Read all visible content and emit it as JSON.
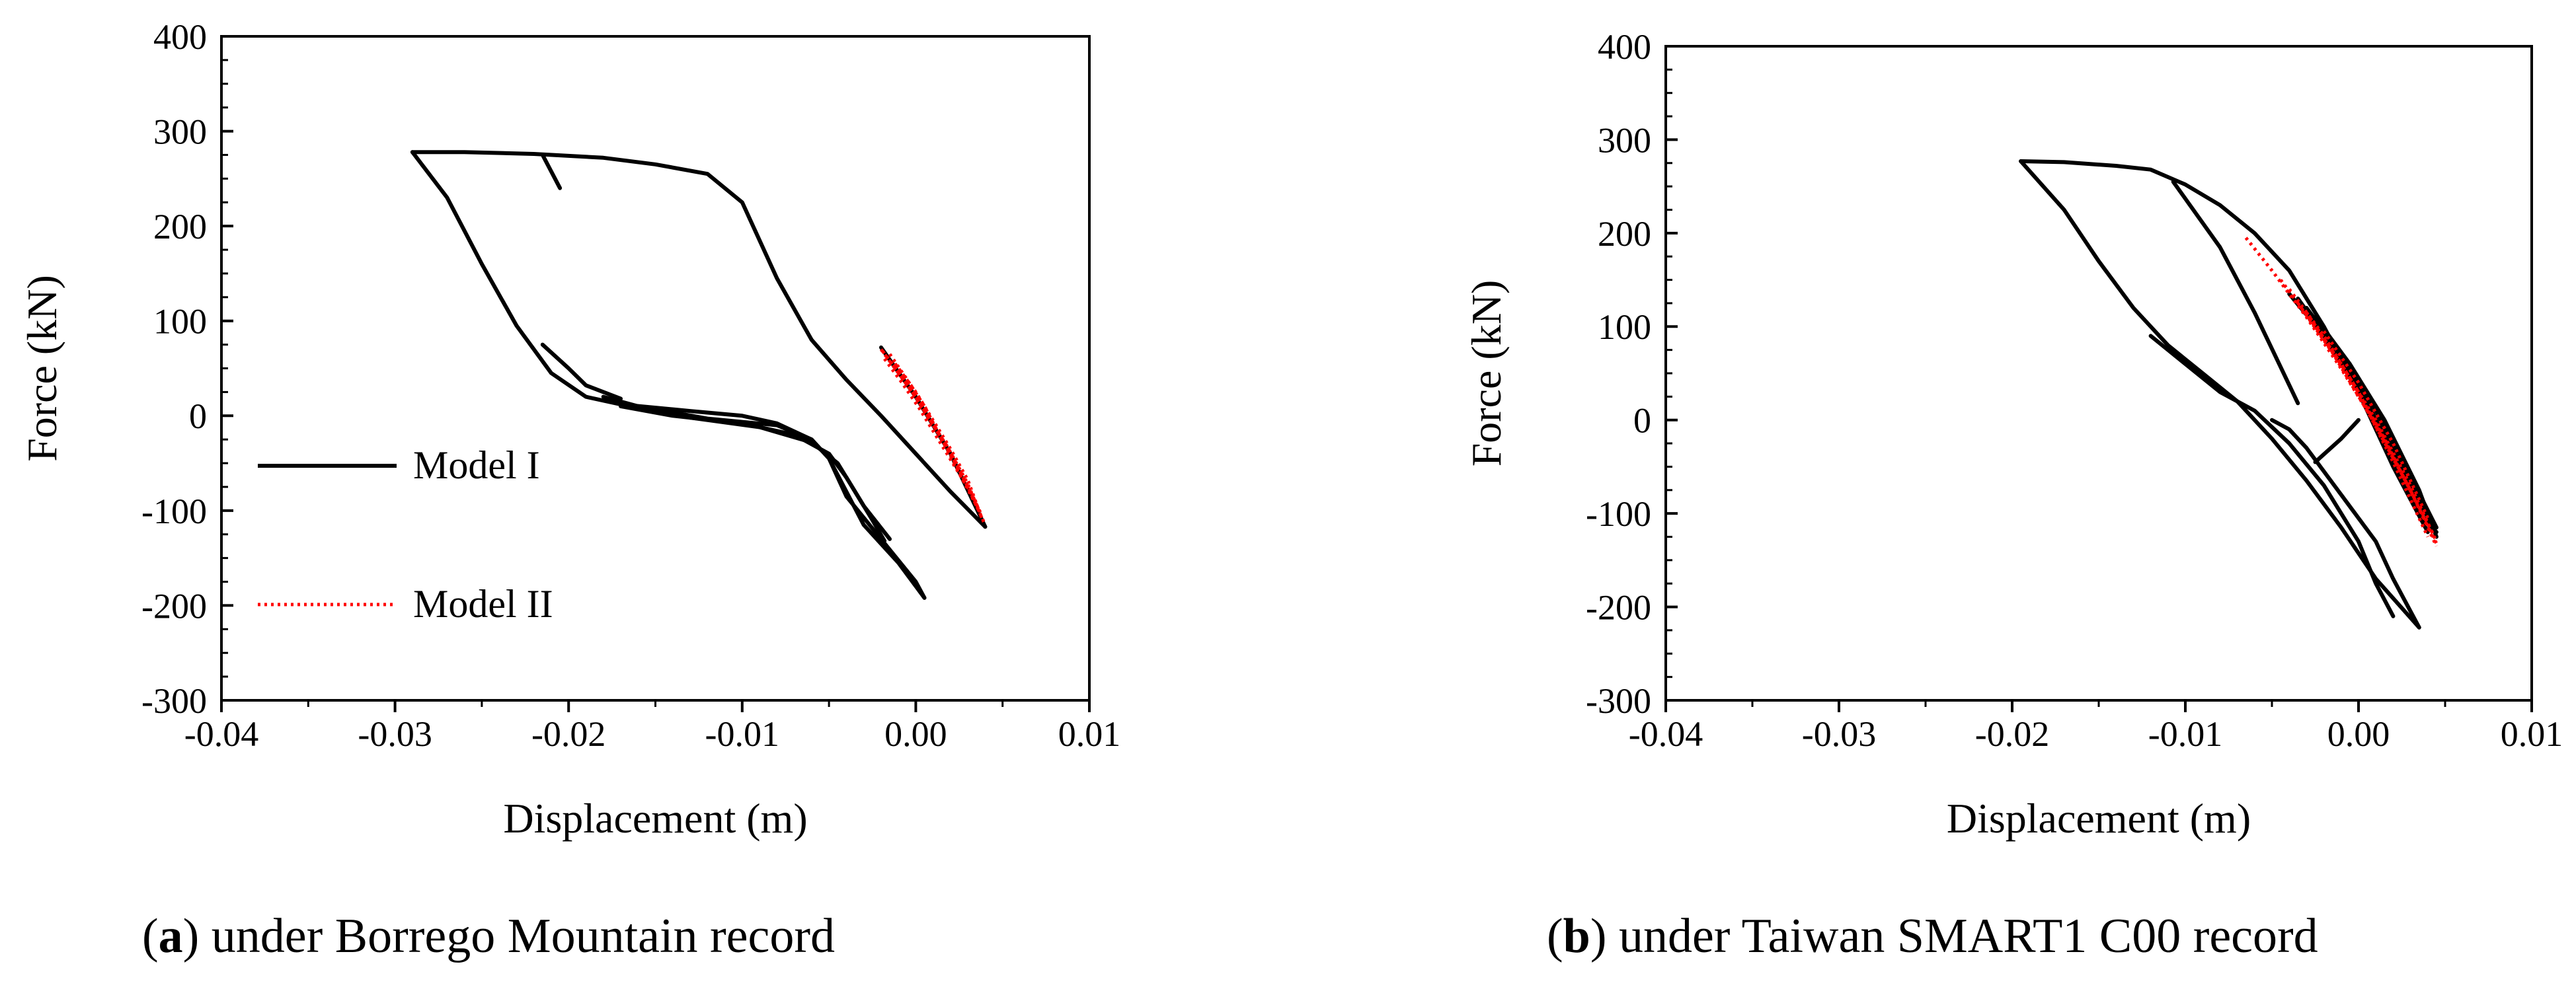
{
  "figure": {
    "captions": [
      {
        "letter": "a",
        "text": ") under Borrego Mountain record",
        "open": "("
      },
      {
        "letter": "b",
        "text": ") under Taiwan SMART1 C00 record",
        "open": "("
      }
    ]
  },
  "chart_data": [
    {
      "type": "line",
      "title": "",
      "xlabel": "Displacement (m)",
      "ylabel": "Force (kN)",
      "xlim": [
        -0.04,
        0.01
      ],
      "ylim": [
        -300,
        400
      ],
      "xticks": [
        -0.04,
        -0.03,
        -0.02,
        -0.01,
        0.0,
        0.01
      ],
      "xtick_labels": [
        "-0.04",
        "-0.03",
        "-0.02",
        "-0.01",
        "0.00",
        "0.01"
      ],
      "yticks": [
        -300,
        -200,
        -100,
        0,
        100,
        200,
        300,
        400
      ],
      "ytick_labels": [
        "-300",
        "-200",
        "-100",
        "0",
        "100",
        "200",
        "300",
        "400"
      ],
      "grid": false,
      "legend": "center-left",
      "series": [
        {
          "name": "Model I",
          "color": "#000000",
          "style": "solid",
          "paths": [
            [
              [
                0.004,
                -117
              ],
              [
                0.002,
                -80
              ],
              [
                0.0,
                -40
              ],
              [
                -0.002,
                0
              ],
              [
                -0.004,
                38
              ],
              [
                -0.006,
                80
              ],
              [
                -0.008,
                145
              ],
              [
                -0.01,
                225
              ],
              [
                -0.012,
                255
              ],
              [
                -0.015,
                265
              ],
              [
                -0.018,
                272
              ],
              [
                -0.022,
                276
              ],
              [
                -0.026,
                278
              ],
              [
                -0.029,
                278
              ]
            ],
            [
              [
                -0.029,
                278
              ],
              [
                -0.027,
                230
              ],
              [
                -0.025,
                160
              ],
              [
                -0.023,
                95
              ],
              [
                -0.021,
                45
              ],
              [
                -0.019,
                20
              ],
              [
                -0.017,
                12
              ],
              [
                -0.013,
                5
              ],
              [
                -0.01,
                0
              ],
              [
                -0.008,
                -8
              ],
              [
                -0.006,
                -25
              ],
              [
                -0.005,
                -45
              ],
              [
                -0.004,
                -85
              ],
              [
                -0.002,
                -130
              ],
              [
                0.0,
                -175
              ],
              [
                0.0005,
                -192
              ]
            ],
            [
              [
                0.0005,
                -192
              ],
              [
                -0.001,
                -155
              ],
              [
                -0.003,
                -115
              ],
              [
                -0.004,
                -80
              ],
              [
                -0.005,
                -45
              ],
              [
                -0.006,
                -25
              ],
              [
                -0.008,
                -10
              ],
              [
                -0.012,
                -3
              ],
              [
                -0.016,
                10
              ],
              [
                -0.018,
                20
              ]
            ],
            [
              [
                -0.0015,
                -130
              ],
              [
                -0.003,
                -95
              ],
              [
                -0.004,
                -65
              ],
              [
                -0.005,
                -40
              ],
              [
                -0.007,
                -20
              ],
              [
                -0.01,
                -8
              ],
              [
                -0.014,
                0
              ],
              [
                -0.017,
                10
              ]
            ],
            [
              [
                -0.0018,
                -132
              ],
              [
                -0.0025,
                -110
              ],
              [
                -0.0035,
                -80
              ],
              [
                -0.0045,
                -50
              ],
              [
                -0.006,
                -28
              ],
              [
                -0.009,
                -12
              ],
              [
                -0.013,
                -2
              ]
            ],
            [
              [
                -0.0215,
                75
              ],
              [
                -0.02,
                50
              ],
              [
                -0.019,
                32
              ],
              [
                -0.017,
                18
              ]
            ],
            [
              [
                -0.0215,
                275
              ],
              [
                -0.0205,
                240
              ]
            ],
            [
              [
                -0.002,
                72
              ],
              [
                0.0,
                20
              ],
              [
                0.002,
                -40
              ],
              [
                0.004,
                -117
              ]
            ]
          ]
        },
        {
          "name": "Model II",
          "color": "#ff0000",
          "style": "dotted",
          "paths": [
            [
              [
                -0.002,
                70
              ],
              [
                -0.001,
                45
              ],
              [
                0.0,
                20
              ],
              [
                0.001,
                -10
              ],
              [
                0.002,
                -40
              ],
              [
                0.003,
                -75
              ],
              [
                0.004,
                -115
              ]
            ],
            [
              [
                -0.0018,
                60
              ],
              [
                -0.0008,
                35
              ],
              [
                0.0002,
                8
              ],
              [
                0.0012,
                -22
              ],
              [
                0.0022,
                -52
              ],
              [
                0.0032,
                -82
              ],
              [
                0.0038,
                -105
              ]
            ],
            [
              [
                -0.0015,
                65
              ],
              [
                -0.0005,
                38
              ],
              [
                0.0005,
                10
              ],
              [
                0.0015,
                -25
              ],
              [
                0.0025,
                -60
              ],
              [
                0.0035,
                -95
              ]
            ],
            [
              [
                -0.0012,
                55
              ],
              [
                0.0,
                25
              ],
              [
                0.001,
                -5
              ],
              [
                0.002,
                -35
              ],
              [
                0.003,
                -68
              ],
              [
                0.0036,
                -98
              ]
            ],
            [
              [
                -0.0019,
                68
              ],
              [
                -0.0006,
                36
              ],
              [
                0.0006,
                2
              ],
              [
                0.0018,
                -32
              ],
              [
                0.003,
                -72
              ],
              [
                0.0039,
                -112
              ]
            ]
          ]
        }
      ]
    },
    {
      "type": "line",
      "title": "",
      "xlabel": "Displacement (m)",
      "ylabel": "Force (kN)",
      "xlim": [
        -0.04,
        0.01
      ],
      "ylim": [
        -300,
        400
      ],
      "xticks": [
        -0.04,
        -0.03,
        -0.02,
        -0.01,
        0.0,
        0.01
      ],
      "xtick_labels": [
        "-0.04",
        "-0.03",
        "-0.02",
        "-0.01",
        "0.00",
        "0.01"
      ],
      "yticks": [
        -300,
        -200,
        -100,
        0,
        100,
        200,
        300,
        400
      ],
      "ytick_labels": [
        "-300",
        "-200",
        "-100",
        "0",
        "100",
        "200",
        "300",
        "400"
      ],
      "grid": false,
      "legend": "none",
      "series": [
        {
          "name": "Model I",
          "color": "#000000",
          "style": "solid",
          "paths": [
            [
              [
                -0.0195,
                277
              ],
              [
                -0.017,
                276
              ],
              [
                -0.014,
                272
              ],
              [
                -0.012,
                268
              ],
              [
                -0.01,
                252
              ],
              [
                -0.008,
                230
              ],
              [
                -0.006,
                200
              ],
              [
                -0.004,
                160
              ],
              [
                -0.002,
                100
              ],
              [
                0.0,
                30
              ],
              [
                0.002,
                -50
              ],
              [
                0.004,
                -120
              ]
            ],
            [
              [
                -0.0195,
                277
              ],
              [
                -0.017,
                225
              ],
              [
                -0.015,
                170
              ],
              [
                -0.013,
                120
              ],
              [
                -0.011,
                80
              ],
              [
                -0.009,
                50
              ],
              [
                -0.007,
                20
              ],
              [
                -0.005,
                -20
              ],
              [
                -0.003,
                -65
              ],
              [
                -0.001,
                -115
              ],
              [
                0.001,
                -170
              ],
              [
                0.0035,
                -222
              ]
            ],
            [
              [
                -0.012,
                90
              ],
              [
                -0.01,
                60
              ],
              [
                -0.008,
                30
              ],
              [
                -0.006,
                10
              ],
              [
                -0.004,
                -25
              ],
              [
                -0.002,
                -70
              ],
              [
                0.0,
                -130
              ],
              [
                0.001,
                -175
              ],
              [
                0.002,
                -210
              ]
            ],
            [
              [
                -0.005,
                0
              ],
              [
                -0.004,
                -10
              ],
              [
                -0.003,
                -30
              ],
              [
                -0.002,
                -55
              ],
              [
                -0.001,
                -80
              ],
              [
                0.001,
                -130
              ],
              [
                0.002,
                -170
              ],
              [
                0.0035,
                -222
              ]
            ],
            [
              [
                -0.0107,
                255
              ],
              [
                -0.008,
                185
              ],
              [
                -0.006,
                115
              ],
              [
                -0.0035,
                18
              ]
            ],
            [
              [
                -0.0025,
                -45
              ],
              [
                -0.001,
                -20
              ],
              [
                0.0,
                0
              ]
            ],
            [
              [
                -0.004,
                135
              ],
              [
                -0.002,
                90
              ],
              [
                0.0,
                30
              ],
              [
                0.002,
                -40
              ],
              [
                0.0035,
                -100
              ],
              [
                0.0045,
                -120
              ]
            ],
            [
              [
                -0.003,
                120
              ],
              [
                -0.001,
                70
              ],
              [
                0.001,
                10
              ],
              [
                0.003,
                -60
              ],
              [
                0.0045,
                -115
              ]
            ],
            [
              [
                -0.0035,
                130
              ],
              [
                -0.0015,
                78
              ],
              [
                0.0005,
                18
              ],
              [
                0.0025,
                -50
              ],
              [
                0.0042,
                -112
              ]
            ],
            [
              [
                -0.0025,
                110
              ],
              [
                -0.0005,
                60
              ],
              [
                0.0015,
                0
              ],
              [
                0.0035,
                -75
              ],
              [
                0.0045,
                -125
              ]
            ]
          ]
        },
        {
          "name": "Model II",
          "color": "#ff0000",
          "style": "dotted",
          "paths": [
            [
              [
                -0.0065,
                195
              ],
              [
                -0.005,
                160
              ],
              [
                -0.003,
                110
              ],
              [
                -0.001,
                55
              ],
              [
                0.001,
                -5
              ],
              [
                0.003,
                -75
              ],
              [
                0.0045,
                -135
              ]
            ],
            [
              [
                -0.004,
                140
              ],
              [
                -0.002,
                90
              ],
              [
                0.0,
                30
              ],
              [
                0.002,
                -45
              ],
              [
                0.004,
                -125
              ]
            ],
            [
              [
                -0.003,
                115
              ],
              [
                -0.001,
                60
              ],
              [
                0.001,
                0
              ],
              [
                0.003,
                -70
              ],
              [
                0.0045,
                -130
              ]
            ],
            [
              [
                -0.0035,
                125
              ],
              [
                -0.0015,
                72
              ],
              [
                0.0005,
                10
              ],
              [
                0.0025,
                -58
              ],
              [
                0.0043,
                -122
              ]
            ],
            [
              [
                -0.002,
                95
              ],
              [
                0.0,
                40
              ],
              [
                0.002,
                -25
              ],
              [
                0.004,
                -105
              ]
            ],
            [
              [
                -0.0045,
                150
              ],
              [
                -0.0025,
                100
              ],
              [
                -0.0005,
                45
              ],
              [
                0.0015,
                -20
              ],
              [
                0.0035,
                -95
              ],
              [
                0.0045,
                -132
              ]
            ]
          ]
        }
      ]
    }
  ]
}
